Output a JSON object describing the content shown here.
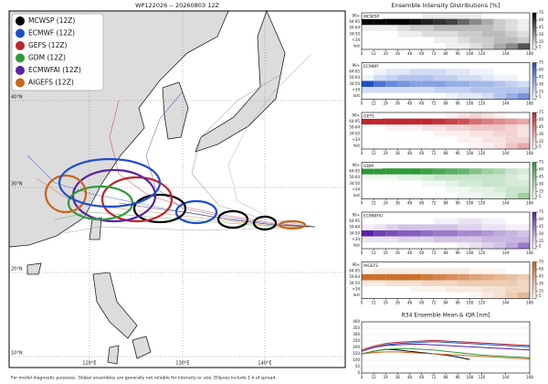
{
  "map": {
    "title": "WP122026 -- 20260803 12Z",
    "legend": [
      {
        "label": "MCWSP (12Z)",
        "color": "#000000"
      },
      {
        "label": "ECMWF (12Z)",
        "color": "#1f4fc8"
      },
      {
        "label": "GEFS (12Z)",
        "color": "#c0262b"
      },
      {
        "label": "GDM (12Z)",
        "color": "#2f9a3a"
      },
      {
        "label": "ECMWFAI (12Z)",
        "color": "#5a22a6"
      },
      {
        "label": "AIGEFS (12Z)",
        "color": "#c8651e"
      }
    ],
    "lat_labels": [
      "40°N",
      "30°N",
      "20°N",
      "10°N"
    ],
    "lon_labels": [
      "120°E",
      "130°E",
      "140°E"
    ],
    "footnote": "For model diagnostic purposes. Global ensembles are generally not reliable for intensity or size. Ellipses include 1 σ of spread."
  },
  "intensity": {
    "title": "Ensemble Intensity Distributions [%]",
    "rows": [
      "96+",
      "64-95",
      "50-64",
      "34-50",
      "<34",
      "lost"
    ],
    "bins": [
      0,
      12,
      24,
      36,
      48,
      60,
      72,
      84,
      96,
      108,
      120,
      132,
      144,
      156,
      168
    ],
    "xlim": [
      0,
      168
    ],
    "xticks": [
      0,
      12,
      24,
      36,
      48,
      60,
      72,
      84,
      96,
      108,
      120,
      144,
      168
    ],
    "clim": [
      0,
      75
    ],
    "cbar_ticks": [
      75,
      60,
      45,
      30,
      15,
      5
    ],
    "panels": [
      {
        "name": "MCWSP",
        "color": "#000000",
        "values": [
          [
            0,
            0,
            0,
            0,
            0,
            5,
            5,
            5,
            5,
            5,
            0,
            0,
            0,
            0
          ],
          [
            75,
            75,
            75,
            75,
            70,
            65,
            60,
            55,
            45,
            35,
            25,
            15,
            10,
            5
          ],
          [
            5,
            5,
            5,
            10,
            15,
            15,
            20,
            20,
            20,
            20,
            20,
            15,
            10,
            5
          ],
          [
            0,
            0,
            0,
            5,
            5,
            10,
            10,
            10,
            15,
            15,
            20,
            20,
            15,
            10
          ],
          [
            0,
            0,
            0,
            0,
            0,
            0,
            5,
            5,
            10,
            15,
            15,
            20,
            20,
            15
          ],
          [
            0,
            0,
            0,
            0,
            0,
            0,
            0,
            5,
            5,
            10,
            15,
            25,
            35,
            50
          ]
        ]
      },
      {
        "name": "ECMWF",
        "color": "#1f4fc8",
        "values": [
          [
            0,
            0,
            0,
            0,
            0,
            0,
            0,
            0,
            0,
            0,
            0,
            0,
            0,
            0
          ],
          [
            0,
            5,
            10,
            10,
            15,
            15,
            15,
            10,
            10,
            5,
            5,
            0,
            0,
            0
          ],
          [
            5,
            15,
            20,
            25,
            25,
            25,
            20,
            20,
            15,
            15,
            10,
            5,
            5,
            0
          ],
          [
            75,
            60,
            50,
            45,
            40,
            40,
            40,
            35,
            35,
            30,
            30,
            25,
            20,
            15
          ],
          [
            15,
            15,
            15,
            15,
            15,
            15,
            20,
            20,
            20,
            25,
            25,
            25,
            25,
            25
          ],
          [
            0,
            0,
            0,
            0,
            0,
            0,
            0,
            5,
            10,
            10,
            15,
            25,
            35,
            45
          ]
        ]
      },
      {
        "name": "GEFS",
        "color": "#c0262b",
        "values": [
          [
            0,
            0,
            0,
            0,
            0,
            0,
            0,
            5,
            10,
            15,
            10,
            5,
            0,
            0
          ],
          [
            75,
            75,
            75,
            75,
            75,
            75,
            70,
            65,
            60,
            50,
            45,
            40,
            35,
            30
          ],
          [
            0,
            0,
            5,
            5,
            5,
            10,
            10,
            15,
            15,
            20,
            20,
            20,
            15,
            10
          ],
          [
            0,
            0,
            0,
            0,
            0,
            0,
            5,
            5,
            5,
            10,
            10,
            15,
            15,
            10
          ],
          [
            0,
            0,
            0,
            0,
            0,
            0,
            0,
            0,
            5,
            5,
            10,
            10,
            15,
            15
          ],
          [
            0,
            0,
            0,
            0,
            0,
            0,
            0,
            0,
            0,
            5,
            5,
            10,
            20,
            30
          ]
        ]
      },
      {
        "name": "GDM",
        "color": "#2f9a3a",
        "values": [
          [
            0,
            0,
            0,
            0,
            0,
            0,
            0,
            0,
            0,
            0,
            0,
            0,
            0,
            0
          ],
          [
            75,
            75,
            75,
            75,
            75,
            70,
            65,
            60,
            55,
            45,
            35,
            30,
            20,
            15
          ],
          [
            5,
            5,
            5,
            10,
            10,
            15,
            20,
            20,
            20,
            20,
            20,
            20,
            15,
            10
          ],
          [
            0,
            0,
            0,
            0,
            0,
            5,
            5,
            10,
            15,
            15,
            20,
            20,
            15,
            15
          ],
          [
            0,
            0,
            0,
            0,
            0,
            0,
            0,
            5,
            5,
            10,
            10,
            15,
            20,
            20
          ],
          [
            0,
            0,
            0,
            0,
            0,
            0,
            0,
            0,
            5,
            5,
            10,
            10,
            20,
            35
          ]
        ]
      },
      {
        "name": "ECMWFAI",
        "color": "#5a22a6",
        "values": [
          [
            0,
            0,
            0,
            0,
            0,
            0,
            0,
            0,
            0,
            0,
            0,
            0,
            0,
            0
          ],
          [
            0,
            0,
            0,
            0,
            0,
            0,
            5,
            5,
            10,
            10,
            5,
            5,
            0,
            0
          ],
          [
            5,
            10,
            15,
            20,
            20,
            20,
            20,
            20,
            15,
            15,
            10,
            10,
            5,
            5
          ],
          [
            75,
            65,
            60,
            55,
            55,
            50,
            45,
            45,
            40,
            40,
            35,
            30,
            25,
            20
          ],
          [
            10,
            10,
            10,
            15,
            15,
            15,
            20,
            20,
            20,
            20,
            25,
            25,
            25,
            25
          ],
          [
            0,
            0,
            0,
            0,
            0,
            0,
            0,
            0,
            5,
            10,
            15,
            20,
            30,
            45
          ]
        ]
      },
      {
        "name": "AIGEFS",
        "color": "#c8651e",
        "values": [
          [
            0,
            0,
            0,
            0,
            0,
            0,
            0,
            0,
            0,
            0,
            0,
            0,
            0,
            0
          ],
          [
            5,
            10,
            10,
            10,
            10,
            10,
            10,
            10,
            10,
            5,
            5,
            5,
            0,
            0
          ],
          [
            70,
            70,
            70,
            70,
            70,
            65,
            60,
            55,
            50,
            45,
            40,
            35,
            30,
            25
          ],
          [
            10,
            10,
            15,
            15,
            15,
            20,
            20,
            20,
            25,
            25,
            25,
            25,
            25,
            20
          ],
          [
            0,
            0,
            0,
            0,
            5,
            5,
            5,
            10,
            10,
            10,
            15,
            15,
            20,
            20
          ],
          [
            0,
            0,
            0,
            0,
            0,
            0,
            0,
            0,
            0,
            5,
            10,
            15,
            25,
            35
          ]
        ]
      }
    ]
  },
  "r34": {
    "type": "line",
    "title": "R34 Ensemble Mean & IQR [nm]",
    "x": [
      0,
      12,
      24,
      36,
      48,
      60,
      72,
      84,
      96,
      108,
      120,
      132,
      144,
      156,
      168
    ],
    "xlim": [
      0,
      168
    ],
    "ylim": [
      0,
      400
    ],
    "xticks": [
      0,
      12,
      24,
      36,
      48,
      60,
      72,
      84,
      96,
      108,
      120,
      144,
      168
    ],
    "yticks": [
      0,
      50,
      100,
      150,
      200,
      250,
      300,
      350,
      400
    ],
    "series": [
      {
        "name": "MCWSP",
        "color": "#000000",
        "values": [
          150,
          170,
          185,
          180,
          170,
          160,
          150,
          140,
          125,
          105,
          null,
          null,
          null,
          null,
          null
        ]
      },
      {
        "name": "ECMWF",
        "color": "#1f4fc8",
        "values": [
          170,
          200,
          220,
          230,
          235,
          240,
          245,
          240,
          235,
          230,
          225,
          220,
          215,
          210,
          205
        ]
      },
      {
        "name": "GEFS",
        "color": "#c0262b",
        "values": [
          180,
          210,
          230,
          240,
          245,
          250,
          255,
          250,
          245,
          240,
          235,
          230,
          225,
          220,
          215
        ]
      },
      {
        "name": "GDM",
        "color": "#2f9a3a",
        "values": [
          150,
          170,
          185,
          190,
          190,
          185,
          180,
          170,
          160,
          150,
          140,
          135,
          130,
          125,
          120
        ]
      },
      {
        "name": "ECMWFAI",
        "color": "#5a22a6",
        "values": [
          170,
          200,
          215,
          220,
          225,
          225,
          220,
          215,
          210,
          205,
          200,
          195,
          190,
          185,
          180
        ]
      },
      {
        "name": "AIGEFS",
        "color": "#c8651e",
        "values": [
          150,
          160,
          165,
          165,
          160,
          155,
          150,
          145,
          140,
          135,
          130,
          125,
          120,
          115,
          110
        ]
      }
    ]
  }
}
